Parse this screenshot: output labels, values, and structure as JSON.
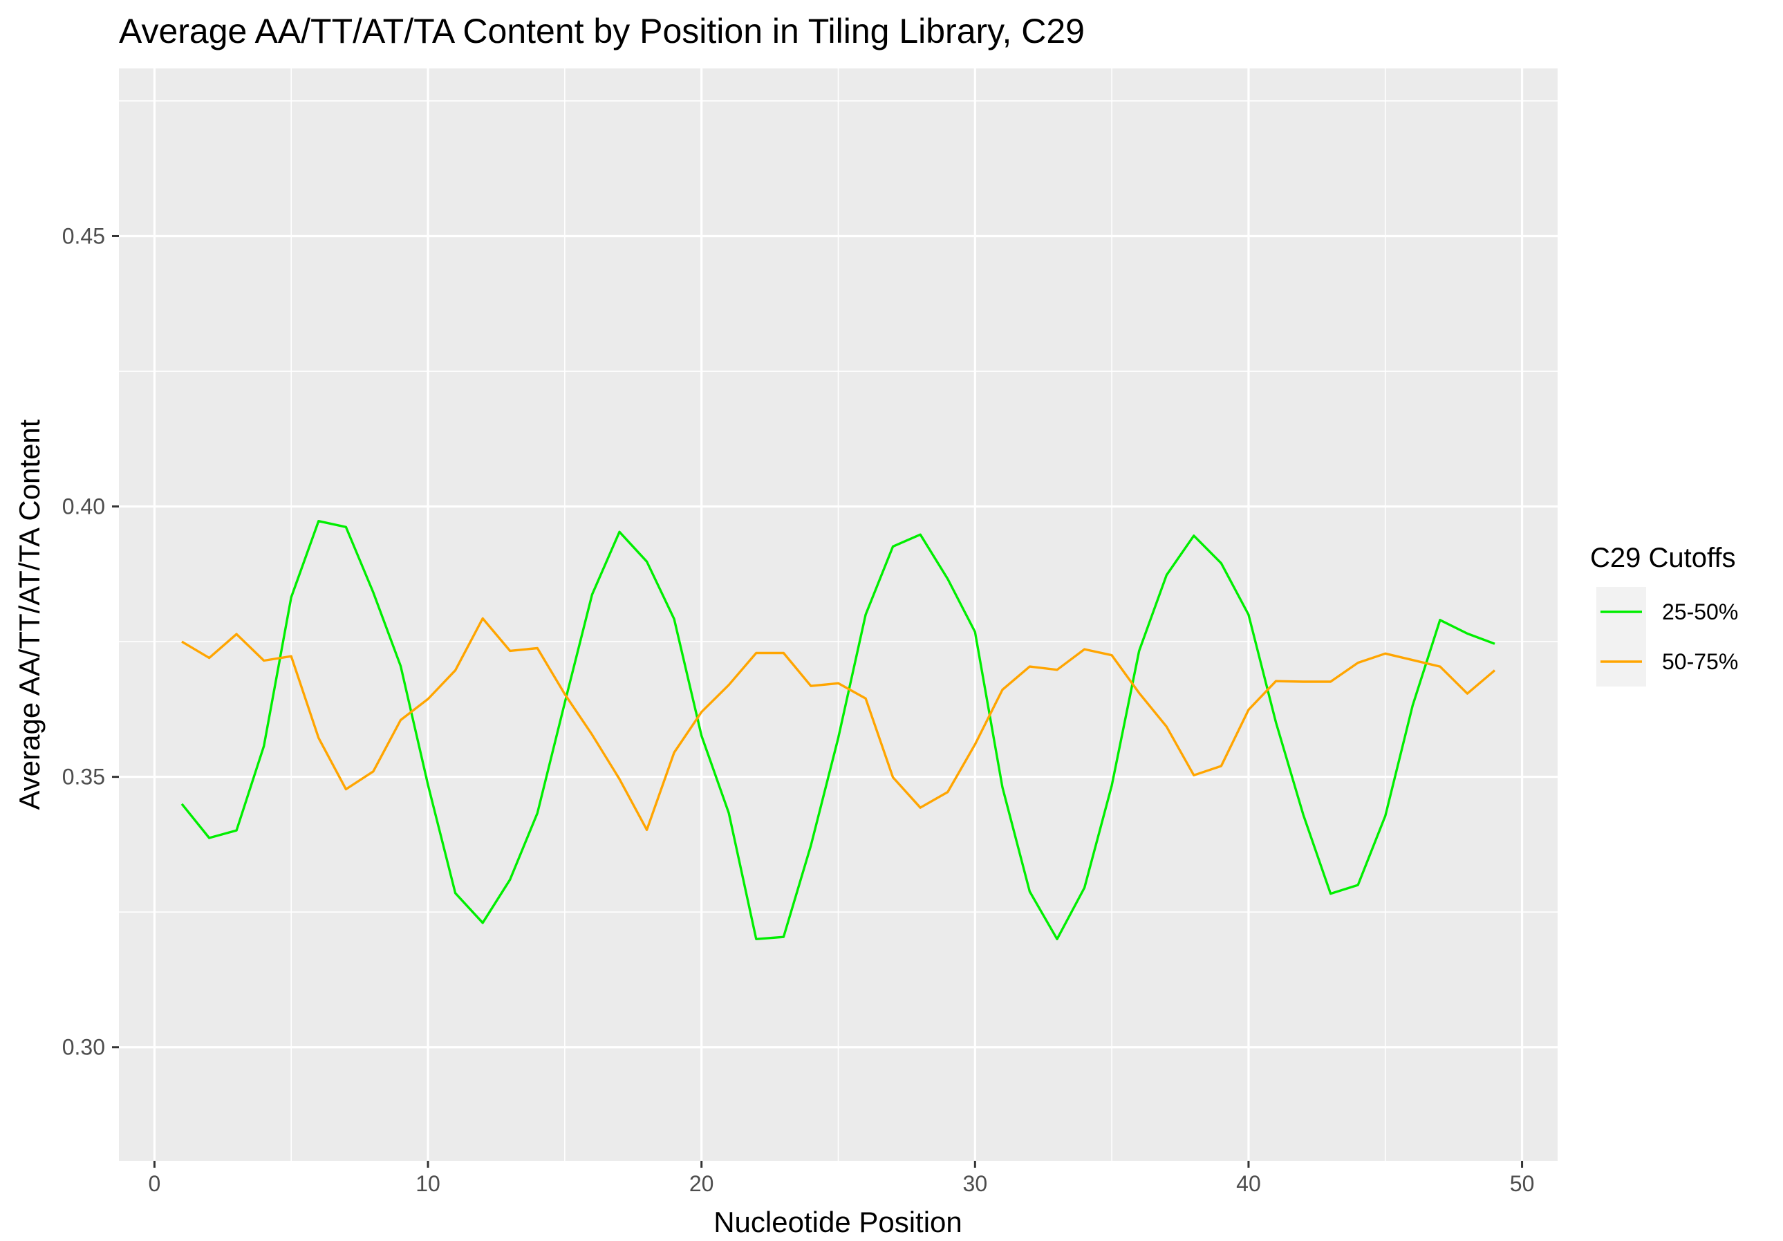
{
  "chart_data": {
    "type": "line",
    "title": "Average AA/TT/AT/TA Content by Position in Tiling Library, C29",
    "xlabel": "Nucleotide Position",
    "ylabel": "Average AA/TT/AT/TA Content",
    "xlim": [
      -1.3,
      51.3
    ],
    "ylim": [
      0.279,
      0.481
    ],
    "x_ticks": [
      0,
      10,
      20,
      30,
      40,
      50
    ],
    "x_tick_labels": [
      "0",
      "10",
      "20",
      "30",
      "40",
      "50"
    ],
    "y_ticks": [
      0.3,
      0.35,
      0.4,
      0.45
    ],
    "y_tick_labels": [
      "0.30",
      "0.35",
      "0.40",
      "0.45"
    ],
    "grid": true,
    "legend": {
      "title": "C29 Cutoffs",
      "position": "right"
    },
    "x": [
      1,
      2,
      3,
      4,
      5,
      6,
      7,
      8,
      9,
      10,
      11,
      12,
      13,
      14,
      15,
      16,
      17,
      18,
      19,
      20,
      21,
      22,
      23,
      24,
      25,
      26,
      27,
      28,
      29,
      30,
      31,
      32,
      33,
      34,
      35,
      36,
      37,
      38,
      39,
      40,
      41,
      42,
      43,
      44,
      45,
      46,
      47,
      48,
      49
    ],
    "series": [
      {
        "name": "25-50%",
        "color": "#00ee00",
        "values": [
          0.345,
          0.3387,
          0.3401,
          0.3557,
          0.3832,
          0.3973,
          0.3962,
          0.3841,
          0.3705,
          0.3485,
          0.3285,
          0.323,
          0.331,
          0.3433,
          0.3637,
          0.3837,
          0.3953,
          0.3898,
          0.3792,
          0.3576,
          0.3433,
          0.32,
          0.3204,
          0.3373,
          0.3572,
          0.38,
          0.3926,
          0.3948,
          0.3866,
          0.3768,
          0.3481,
          0.3288,
          0.32,
          0.3295,
          0.3484,
          0.3733,
          0.3873,
          0.3946,
          0.3895,
          0.38,
          0.3601,
          0.343,
          0.3284,
          0.33,
          0.3428,
          0.3632,
          0.379,
          0.3765,
          0.3746
        ]
      },
      {
        "name": "50-75%",
        "color": "#ffa500",
        "values": [
          0.375,
          0.372,
          0.3764,
          0.3715,
          0.3723,
          0.3572,
          0.3477,
          0.351,
          0.3605,
          0.3644,
          0.3697,
          0.3793,
          0.3733,
          0.3738,
          0.3653,
          0.3578,
          0.3496,
          0.3402,
          0.3545,
          0.362,
          0.367,
          0.3729,
          0.3729,
          0.3668,
          0.3673,
          0.3645,
          0.3499,
          0.3443,
          0.3472,
          0.356,
          0.3661,
          0.3704,
          0.3698,
          0.3736,
          0.3725,
          0.3655,
          0.3593,
          0.3503,
          0.352,
          0.3624,
          0.3677,
          0.3676,
          0.3676,
          0.3711,
          0.3728,
          0.3716,
          0.3704,
          0.3654,
          0.3697
        ]
      }
    ]
  }
}
